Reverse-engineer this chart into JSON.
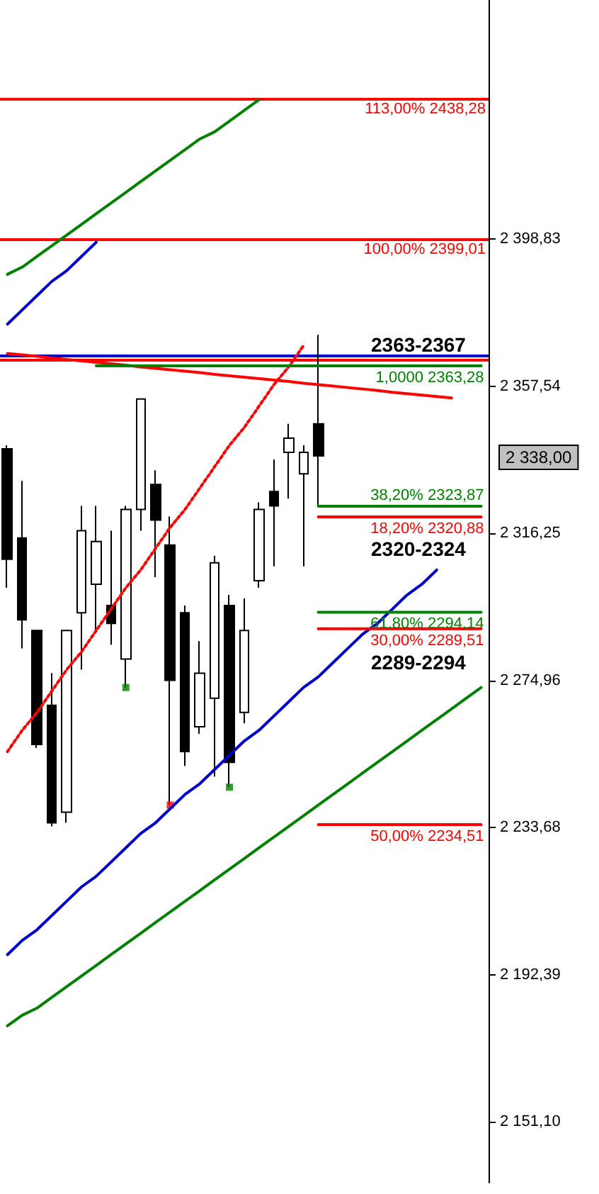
{
  "chart_data": {
    "type": "candlestick",
    "categories": [
      null,
      null,
      null,
      null,
      null,
      null,
      null,
      null,
      null,
      null,
      null,
      null,
      null,
      null,
      null,
      null,
      null,
      null,
      null,
      null,
      null,
      null,
      null,
      null,
      null,
      null,
      null,
      null,
      null,
      null,
      null,
      null,
      null
    ],
    "ohlc": [
      [
        2340,
        2341,
        2301,
        2309
      ],
      [
        2315,
        2331,
        2284,
        2292
      ],
      [
        2289,
        2289,
        2256,
        2257
      ],
      [
        2268,
        2277,
        2234,
        2235
      ],
      [
        2238,
        2289,
        2235,
        2289
      ],
      [
        2294,
        2324,
        2278,
        2317
      ],
      [
        2302,
        2324,
        2289,
        2314
      ],
      [
        2296,
        2317,
        2285,
        2291
      ],
      [
        2281,
        2324,
        2273,
        2323
      ],
      [
        2323,
        2354,
        2317,
        2354
      ],
      [
        2330,
        2334,
        2304,
        2320
      ],
      [
        2313,
        2321,
        2240,
        2275
      ],
      [
        2294,
        2296,
        2251,
        2255
      ],
      [
        2262,
        2286,
        2260,
        2277
      ],
      [
        2270,
        2310,
        2248,
        2308
      ],
      [
        2296,
        2299,
        2245,
        2252
      ],
      [
        2266,
        2298,
        2263,
        2289
      ],
      [
        2303,
        2325,
        2301,
        2323
      ],
      [
        2328,
        2337,
        2307,
        2324
      ],
      [
        2339,
        2347,
        2326,
        2343
      ],
      [
        2333,
        2341,
        2307,
        2339
      ],
      [
        2347,
        2372,
        2324,
        2338
      ],
      null,
      null,
      null,
      null,
      null,
      null,
      null,
      null,
      null,
      null,
      null
    ],
    "value_labels": [
      null,
      null,
      null,
      null,
      null,
      null,
      null,
      null,
      null,
      null,
      null,
      null,
      null,
      null,
      null,
      null,
      null,
      null,
      null,
      null,
      null,
      "2 338,00",
      null,
      null,
      null,
      null,
      null,
      null,
      null,
      null,
      null,
      null,
      null
    ],
    "ylim": [
      2134,
      2466
    ],
    "yticks": [
      {
        "value": 2151.1,
        "label": "2 151,10"
      },
      {
        "value": 2192.39,
        "label": "2 192,39"
      },
      {
        "value": 2233.68,
        "label": "2 233,68"
      },
      {
        "value": 2274.96,
        "label": "2 274,96"
      },
      {
        "value": 2316.25,
        "label": "2 316,25"
      },
      {
        "value": 2357.54,
        "label": "2 357,54"
      },
      {
        "value": 2398.83,
        "label": "2 398,83"
      }
    ],
    "series": [
      {
        "type": "line",
        "color": "#008000",
        "values": [
          2389,
          2391,
          2394,
          2397,
          2400,
          2403,
          2406,
          2409,
          2412,
          2415,
          2418,
          2421,
          2424,
          2427,
          2429,
          2432,
          2435,
          2438,
          null,
          null,
          null,
          null,
          null,
          null,
          null,
          null,
          null,
          null,
          null,
          null,
          null,
          null,
          null
        ]
      },
      {
        "type": "line",
        "color": "#0000cc",
        "values": [
          2375,
          2379,
          2383,
          2387,
          2390,
          2394,
          2398,
          null,
          null,
          null,
          null,
          null,
          null,
          null,
          null,
          null,
          null,
          null,
          null,
          null,
          null,
          null,
          null,
          null,
          null,
          null,
          null,
          null,
          null,
          null,
          null,
          null,
          null
        ]
      },
      {
        "type": "line",
        "color": "#008000",
        "values": [
          2178,
          2181,
          2183,
          2186,
          2189,
          2192,
          2195,
          2198,
          2201,
          2204,
          2207,
          2210,
          2213,
          2216,
          2219,
          2222,
          2225,
          2228,
          2231,
          2234,
          2237,
          2240,
          2243,
          2246,
          2249,
          2252,
          2255,
          2258,
          2261,
          2264,
          2267,
          2270,
          2273
        ]
      },
      {
        "type": "line",
        "color": "#0000cc",
        "values": [
          2198,
          2202,
          2205,
          2209,
          2213,
          2217,
          2220,
          2224,
          2228,
          2232,
          2235,
          2239,
          2243,
          2246,
          2250,
          2254,
          2258,
          2261,
          2265,
          2269,
          2273,
          2276,
          2280,
          2284,
          2288,
          2291,
          2295,
          2299,
          2302,
          2306,
          null,
          null,
          null
        ]
      },
      {
        "type": "line",
        "color": "#ff0000",
        "values": [
          2366.8,
          2366.4,
          2366.0,
          2365.5,
          2365.1,
          2364.7,
          2364.3,
          2363.9,
          2363.5,
          2363.0,
          2362.6,
          2362.2,
          2361.8,
          2361.4,
          2360.9,
          2360.5,
          2360.1,
          2359.7,
          2359.3,
          2358.9,
          2358.4,
          2358.0,
          2357.6,
          2357.2,
          2356.8,
          2356.4,
          2355.9,
          2355.5,
          2355.1,
          2354.7,
          2354.3,
          null,
          null
        ]
      },
      {
        "type": "line",
        "color": "#ff0000",
        "line_style": "dotted",
        "values": [
          2255,
          2261,
          2266,
          2272,
          2278,
          2283,
          2289,
          2295,
          2301,
          2306,
          2312,
          2318,
          2323,
          2329,
          2335,
          2341,
          2346,
          2352,
          2358,
          2363,
          2369,
          null,
          null,
          null,
          null,
          null,
          null,
          null,
          null,
          null,
          null,
          null,
          null
        ]
      },
      {
        "type": "line",
        "name": "1,0000 2363,28",
        "color": "#008000",
        "values": [
          null,
          null,
          null,
          null,
          null,
          null,
          2363.28,
          2363.28,
          2363.28,
          2363.28,
          2363.28,
          2363.28,
          2363.28,
          2363.28,
          2363.28,
          2363.28,
          2363.28,
          2363.28,
          2363.28,
          2363.28,
          2363.28,
          2363.28,
          2363.28,
          2363.28,
          2363.28,
          2363.28,
          2363.28,
          2363.28,
          2363.28,
          2363.28,
          2363.28,
          2363.28,
          2363.28
        ]
      },
      {
        "type": "line",
        "name": "38,20% 2323,87",
        "color": "#008000",
        "values": [
          null,
          null,
          null,
          null,
          null,
          null,
          null,
          null,
          null,
          null,
          null,
          null,
          null,
          null,
          null,
          null,
          null,
          null,
          null,
          null,
          null,
          2323.87,
          2323.87,
          2323.87,
          2323.87,
          2323.87,
          2323.87,
          2323.87,
          2323.87,
          2323.87,
          2323.87,
          2323.87,
          2323.87
        ]
      },
      {
        "type": "line",
        "name": "18,20% 2320,88",
        "color": "#ff0000",
        "values": [
          null,
          null,
          null,
          null,
          null,
          null,
          null,
          null,
          null,
          null,
          null,
          null,
          null,
          null,
          null,
          null,
          null,
          null,
          null,
          null,
          null,
          2320.88,
          2320.88,
          2320.88,
          2320.88,
          2320.88,
          2320.88,
          2320.88,
          2320.88,
          2320.88,
          2320.88,
          2320.88,
          2320.88
        ]
      },
      {
        "type": "line",
        "name": "61,80% 2294,14",
        "color": "#008000",
        "values": [
          null,
          null,
          null,
          null,
          null,
          null,
          null,
          null,
          null,
          null,
          null,
          null,
          null,
          null,
          null,
          null,
          null,
          null,
          null,
          null,
          null,
          2294.14,
          2294.14,
          2294.14,
          2294.14,
          2294.14,
          2294.14,
          2294.14,
          2294.14,
          2294.14,
          2294.14,
          2294.14,
          2294.14
        ]
      },
      {
        "type": "line",
        "name": "30,00% 2289,51",
        "color": "#ff0000",
        "values": [
          null,
          null,
          null,
          null,
          null,
          null,
          null,
          null,
          null,
          null,
          null,
          null,
          null,
          null,
          null,
          null,
          null,
          null,
          null,
          null,
          null,
          2289.51,
          2289.51,
          2289.51,
          2289.51,
          2289.51,
          2289.51,
          2289.51,
          2289.51,
          2289.51,
          2289.51,
          2289.51,
          2289.51
        ]
      },
      {
        "type": "line",
        "name": "50,00% 2234,51",
        "color": "#ff0000",
        "values": [
          null,
          null,
          null,
          null,
          null,
          null,
          null,
          null,
          null,
          null,
          null,
          null,
          null,
          null,
          null,
          null,
          null,
          null,
          null,
          null,
          null,
          2234.51,
          2234.51,
          2234.51,
          2234.51,
          2234.51,
          2234.51,
          2234.51,
          2234.51,
          2234.51,
          2234.51,
          2234.51,
          2234.51
        ]
      },
      {
        "type": "scatter",
        "color": "#008000",
        "marker": "square",
        "values": [
          null,
          null,
          null,
          null,
          null,
          null,
          null,
          null,
          2273,
          null,
          null,
          null,
          null,
          null,
          null,
          2245,
          null,
          null,
          null,
          null,
          null,
          null,
          null,
          null,
          null,
          null,
          null,
          null,
          null,
          null,
          null,
          null,
          null
        ]
      },
      {
        "type": "scatter",
        "color": "#ff0000",
        "marker": "square",
        "values": [
          null,
          null,
          null,
          null,
          null,
          null,
          null,
          null,
          null,
          null,
          null,
          2240,
          null,
          null,
          null,
          null,
          null,
          null,
          null,
          null,
          null,
          null,
          null,
          null,
          null,
          null,
          null,
          null,
          null,
          null,
          null,
          null,
          null
        ]
      }
    ],
    "ref_lines": [
      {
        "axis": "y",
        "value": 2438.28,
        "label": "113,00% 2438,28",
        "color": "#ff0000"
      },
      {
        "axis": "y",
        "value": 2399.01,
        "label": "100,00% 2399,01",
        "color": "#ff0000"
      },
      {
        "axis": "y",
        "value": 2366,
        "color": "#0000cc"
      },
      {
        "axis": "y",
        "value": 2365,
        "color": "#ff0000"
      }
    ],
    "annotations": [
      "2363-2367",
      "2320-2324",
      "2289-2294"
    ]
  }
}
